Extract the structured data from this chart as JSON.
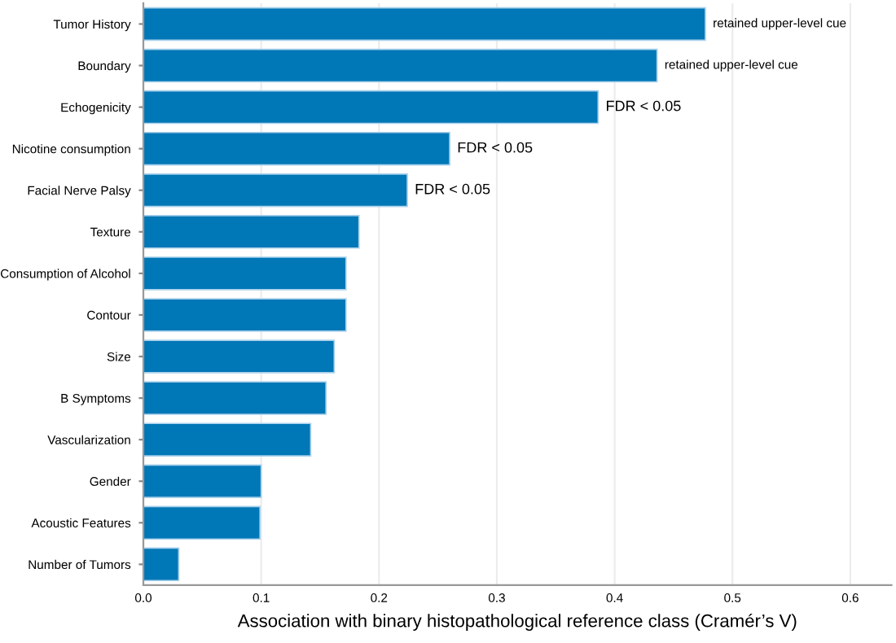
{
  "chart_data": {
    "type": "bar",
    "orientation": "horizontal",
    "categories": [
      "Tumor History",
      "Boundary",
      "Echogenicity",
      "Nicotine consumption",
      "Facial Nerve Palsy",
      "Texture",
      "Consumption of Alcohol",
      "Contour",
      "Size",
      "B Symptoms",
      "Vascularization",
      "Gender",
      "Acoustic Features",
      "Number of Tumors"
    ],
    "values": [
      0.477,
      0.436,
      0.386,
      0.26,
      0.224,
      0.183,
      0.172,
      0.172,
      0.162,
      0.155,
      0.142,
      0.1,
      0.099,
      0.03
    ],
    "color": "#0077b6",
    "xlabel": "Association with binary histopathological reference class (Cramér’s V)",
    "xlim": [
      0,
      0.635
    ],
    "xticks": [
      {
        "value": 0,
        "label": "0.0"
      },
      0.1,
      0.2,
      0.3,
      0.4,
      0.5,
      0.6
    ],
    "grid": "x",
    "annotations": [
      {
        "text": "retained upper-level cue",
        "x": 0.477,
        "y": "Tumor History"
      },
      {
        "text": "retained upper-level cue",
        "x": 0.436,
        "y": "Boundary"
      },
      {
        "text": "FDR < 0.05",
        "x": 0.386,
        "y": "Echogenicity"
      },
      {
        "text": "FDR < 0.05",
        "x": 0.26,
        "y": "Nicotine consumption"
      },
      {
        "text": "FDR < 0.05",
        "x": 0.224,
        "y": "Facial Nerve Palsy"
      }
    ]
  }
}
